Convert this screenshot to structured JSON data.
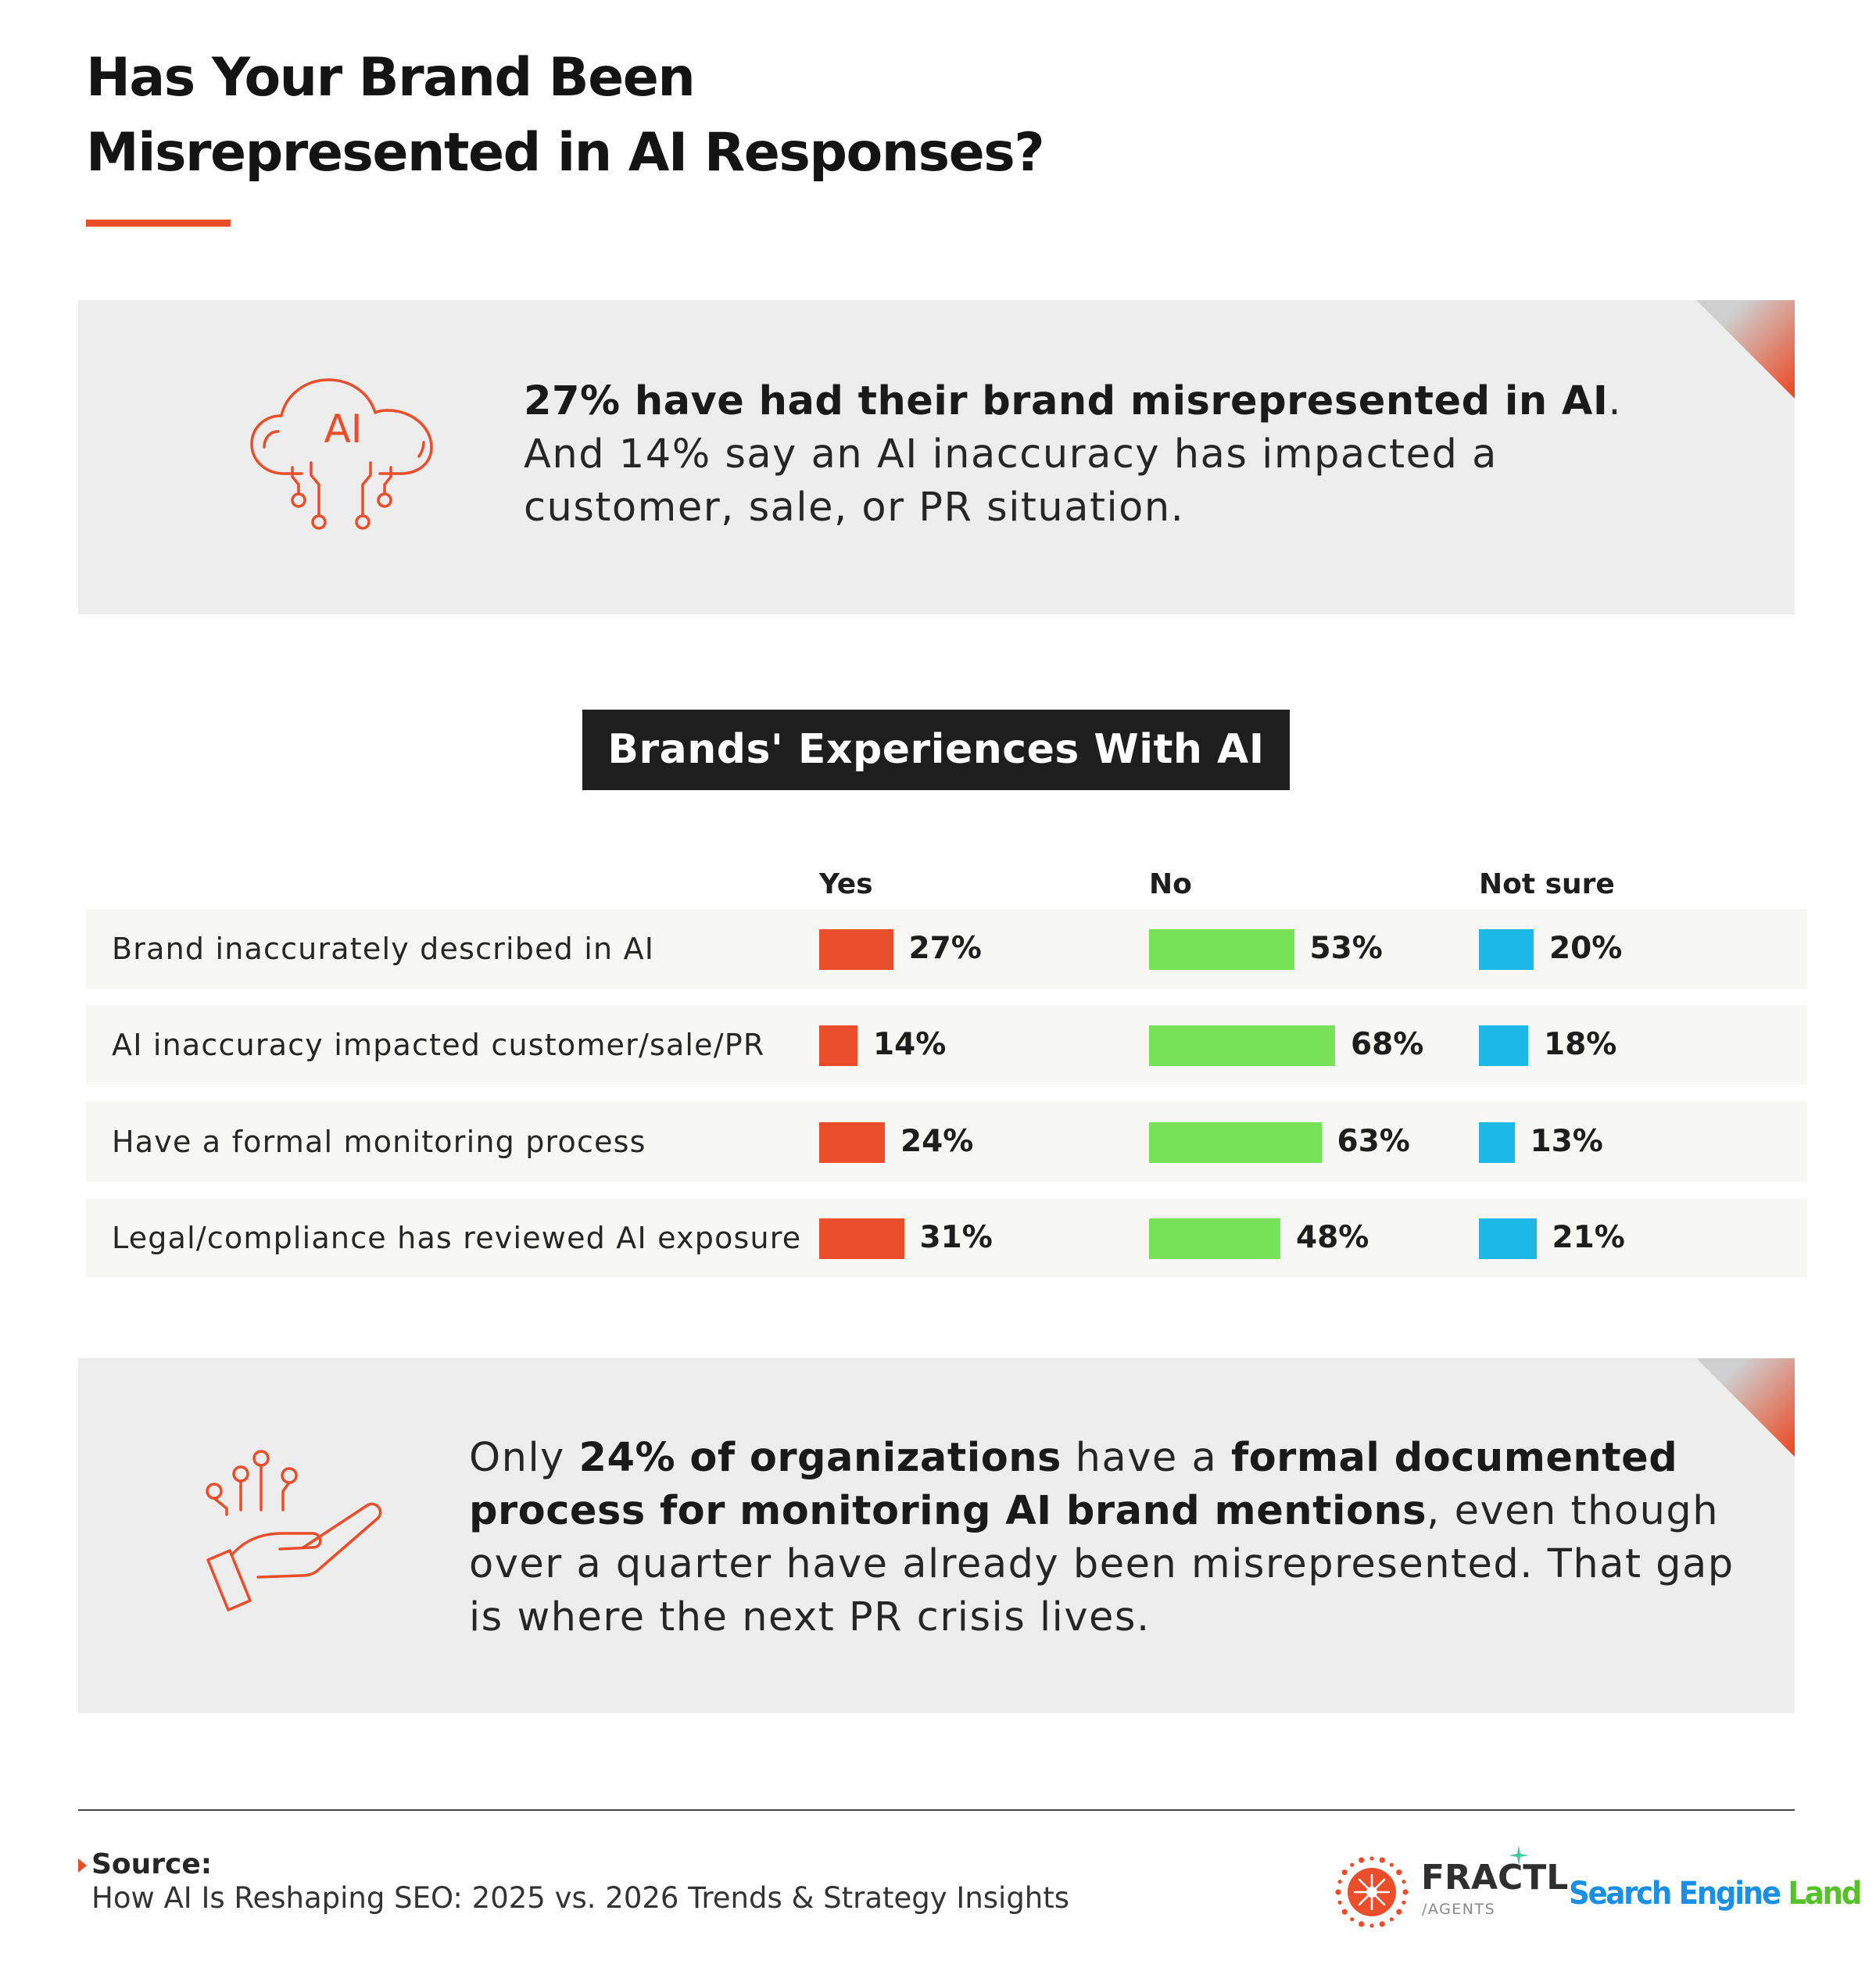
{
  "title": {
    "line1": "Has Your Brand Been",
    "line2": "Misrepresented in AI Responses?"
  },
  "callout_top": {
    "icon": "ai-cloud-circuit-icon",
    "text_bold": "27% have had their brand misrepresented in AI",
    "text_after_bold": ".",
    "text_rest": " And 14% say an AI inaccuracy has impacted a customer, sale, or PR situation.",
    "icon_label": "AI"
  },
  "chart_data": {
    "type": "bar",
    "title": "Brands' Experiences With AI",
    "categories": [
      "Brand inaccurately described in AI",
      "AI inaccuracy impacted customer/sale/PR",
      "Have a formal monitoring process",
      "Legal/compliance has reviewed AI exposure"
    ],
    "series": [
      {
        "name": "Yes",
        "values": [
          27,
          14,
          24,
          31
        ],
        "labels": [
          "27%",
          "14%",
          "24%",
          "31%"
        ],
        "color": "#ea4d2a"
      },
      {
        "name": "No",
        "values": [
          53,
          68,
          63,
          48
        ],
        "labels": [
          "53%",
          "68%",
          "63%",
          "48%"
        ],
        "color": "#77e157"
      },
      {
        "name": "Not sure",
        "values": [
          20,
          18,
          13,
          21
        ],
        "labels": [
          "20%",
          "18%",
          "13%",
          "21%"
        ],
        "color": "#1db9e6"
      }
    ],
    "unit": "%",
    "legend": "column headers above bars",
    "grid": false
  },
  "callout_bottom": {
    "icon": "hand-circuit-icon",
    "t1": "Only ",
    "b1": "24% of organizations",
    "t2": " have a ",
    "b2": "formal documented process for monitoring AI brand mentions",
    "t3": ", even though over a quarter have already been misrepresented. That gap is where the next PR crisis lives."
  },
  "footer": {
    "source_label": "Source:",
    "source_text": "How AI Is Reshaping SEO: 2025 vs. 2026 Trends & Strategy Insights",
    "fractl_logo": "FRACTL",
    "fractl_sub": "/AGENTS",
    "sel_logo_part1": "Search Engine",
    "sel_logo_part2": " Land"
  },
  "colors": {
    "accent": "#ea4d2a",
    "yes": "#ea4d2a",
    "no": "#77e157",
    "not_sure": "#1db9e6",
    "card_bg": "#ededed"
  }
}
